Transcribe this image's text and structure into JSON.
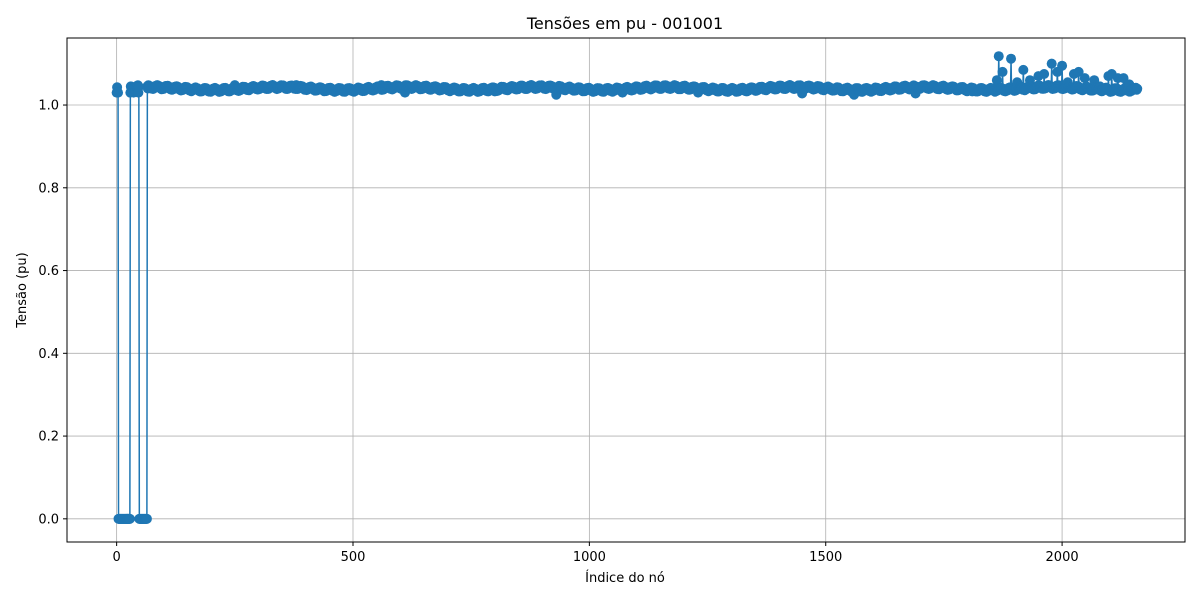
{
  "chart_data": {
    "type": "line",
    "title": "Tensões em pu - 001001",
    "xlabel": "Índice do nó",
    "ylabel": "Tensão (pu)",
    "xlim": [
      -105,
      2260
    ],
    "ylim": [
      -0.056,
      1.162
    ],
    "xticks": [
      0,
      500,
      1000,
      1500,
      2000
    ],
    "yticks": [
      0.0,
      0.2,
      0.4,
      0.6,
      0.8,
      1.0
    ],
    "xtick_labels": [
      "0",
      "500",
      "1000",
      "1500",
      "2000"
    ],
    "ytick_labels": [
      "0.0",
      "0.2",
      "0.4",
      "0.6",
      "0.8",
      "1.0"
    ],
    "grid": true,
    "marker": "circle",
    "color": "#1f77b4",
    "series": [
      {
        "n_points": 2160,
        "baseline": 1.04,
        "zero_ranges": [
          [
            4,
            28
          ],
          [
            48,
            64
          ]
        ],
        "spikes": [
          [
            0,
            1.03
          ],
          [
            2,
            1.03
          ],
          [
            3,
            1.03
          ],
          [
            29,
            1.03
          ],
          [
            30,
            1.045
          ],
          [
            36,
            1.03
          ],
          [
            40,
            1.035
          ],
          [
            46,
            1.03
          ],
          [
            66,
            1.04
          ],
          [
            70,
            1.045
          ],
          [
            250,
            1.048
          ],
          [
            380,
            1.048
          ],
          [
            560,
            1.048
          ],
          [
            610,
            1.03
          ],
          [
            800,
            1.033
          ],
          [
            930,
            1.025
          ],
          [
            1070,
            1.03
          ],
          [
            1230,
            1.03
          ],
          [
            1450,
            1.028
          ],
          [
            1560,
            1.025
          ],
          [
            1690,
            1.028
          ],
          [
            1810,
            1.033
          ],
          [
            1862,
            1.06
          ],
          [
            1866,
            1.118
          ],
          [
            1874,
            1.08
          ],
          [
            1892,
            1.112
          ],
          [
            1905,
            1.055
          ],
          [
            1918,
            1.085
          ],
          [
            1932,
            1.06
          ],
          [
            1950,
            1.07
          ],
          [
            1962,
            1.075
          ],
          [
            1978,
            1.1
          ],
          [
            1990,
            1.08
          ],
          [
            2000,
            1.095
          ],
          [
            2012,
            1.055
          ],
          [
            2025,
            1.075
          ],
          [
            2035,
            1.08
          ],
          [
            2048,
            1.065
          ],
          [
            2060,
            1.035
          ],
          [
            2068,
            1.06
          ],
          [
            2080,
            1.045
          ],
          [
            2098,
            1.07
          ],
          [
            2105,
            1.075
          ],
          [
            2118,
            1.065
          ],
          [
            2130,
            1.065
          ],
          [
            2142,
            1.05
          ],
          [
            2152,
            1.04
          ]
        ]
      }
    ]
  }
}
